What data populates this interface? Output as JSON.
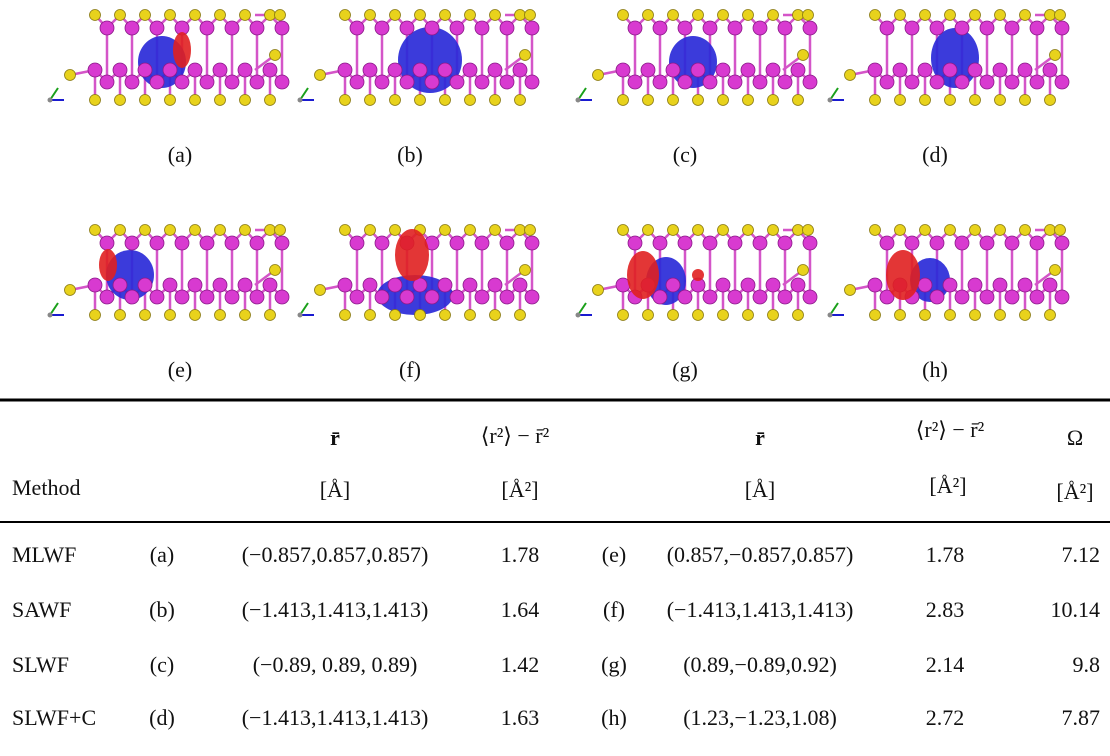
{
  "figure": {
    "panel_labels": [
      "(a)",
      "(b)",
      "(c)",
      "(d)",
      "(e)",
      "(f)",
      "(g)",
      "(h)"
    ]
  },
  "table": {
    "header_top": [
      "r̄",
      "⟨r²⟩ − r̄²",
      "r̄",
      "⟨r²⟩ − r̄²",
      "Ω"
    ],
    "header_bottom": [
      "Method",
      "[Å]",
      "[Å²]",
      "[Å]",
      "[Å²]",
      "[Å²]"
    ],
    "rows": [
      [
        "MLWF",
        "(a)",
        "(−0.857,0.857,0.857)",
        "1.78",
        "(e)",
        "(0.857,−0.857,0.857)",
        "1.78",
        "7.12"
      ],
      [
        "SAWF",
        "(b)",
        "(−1.413,1.413,1.413)",
        "1.64",
        "(f)",
        "(−1.413,1.413,1.413)",
        "2.83",
        "10.14"
      ],
      [
        "SLWF",
        "(c)",
        "(−0.89, 0.89, 0.89)",
        "1.42",
        "(g)",
        "(0.89,−0.89,0.92)",
        "2.14",
        "9.8"
      ],
      [
        "SLWF+C",
        "(d)",
        "(−1.413,1.413,1.413)",
        "1.63",
        "(h)",
        "(1.23,−1.23,1.08)",
        "2.72",
        "7.87"
      ]
    ]
  }
}
